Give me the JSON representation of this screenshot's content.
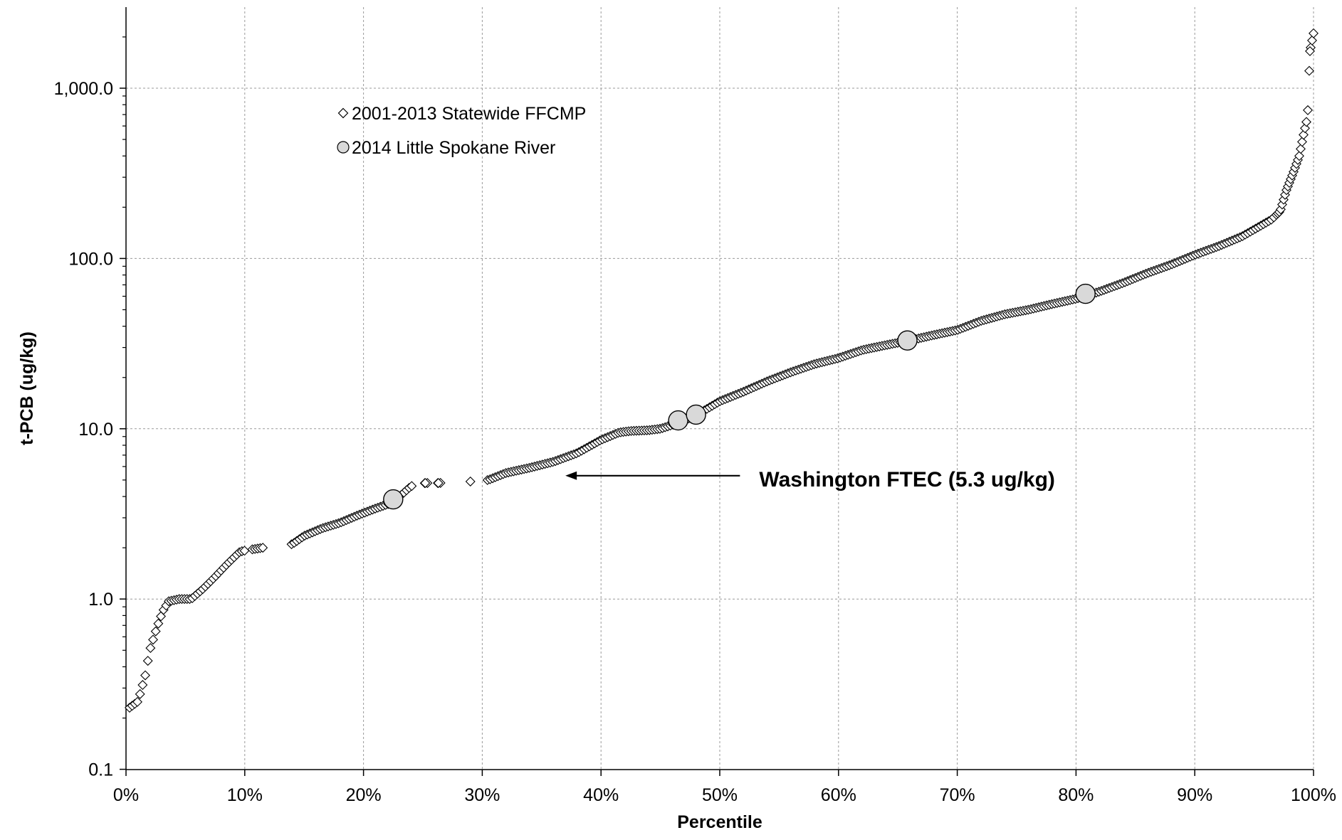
{
  "chart_data": {
    "type": "scatter",
    "title": "",
    "xlabel": "Percentile",
    "ylabel": "t-PCB (ug/kg)",
    "x_scale": "linear",
    "y_scale": "log",
    "xlim": [
      0,
      100
    ],
    "ylim": [
      0.1,
      3000
    ],
    "x_ticks": [
      0,
      10,
      20,
      30,
      40,
      50,
      60,
      70,
      80,
      90,
      100
    ],
    "x_tick_labels": [
      "0%",
      "10%",
      "20%",
      "30%",
      "40%",
      "50%",
      "60%",
      "70%",
      "80%",
      "90%",
      "100%"
    ],
    "y_ticks": [
      0.1,
      1,
      10,
      100,
      1000
    ],
    "y_tick_labels": [
      "0.1",
      "1.0",
      "10.0",
      "100.0",
      "1,000.0"
    ],
    "grid": true,
    "legend_position": "top-left",
    "series": [
      {
        "name": "2001-2013 Statewide FFCMP",
        "marker": "diamond",
        "color": "#000000",
        "fill": "#ffffff",
        "curve_points": [
          [
            0.3,
            0.23
          ],
          [
            1.0,
            0.25
          ],
          [
            1.6,
            0.35
          ],
          [
            2.0,
            0.5
          ],
          [
            2.6,
            0.68
          ],
          [
            3.1,
            0.85
          ],
          [
            3.6,
            0.97
          ],
          [
            4.5,
            1.0
          ],
          [
            5.5,
            1.0
          ],
          [
            6.5,
            1.15
          ],
          [
            7.5,
            1.35
          ],
          [
            8.5,
            1.6
          ],
          [
            9.6,
            1.9
          ],
          [
            10.5,
            1.95
          ],
          [
            11.5,
            2.0
          ],
          [
            14.0,
            2.1
          ],
          [
            15.0,
            2.35
          ],
          [
            16.5,
            2.6
          ],
          [
            18.0,
            2.8
          ],
          [
            19.5,
            3.1
          ],
          [
            21.0,
            3.4
          ],
          [
            22.5,
            3.7
          ],
          [
            24.0,
            4.6
          ],
          [
            25.2,
            4.8
          ],
          [
            26.3,
            4.8
          ],
          [
            29.0,
            4.9
          ],
          [
            30.5,
            5.0
          ],
          [
            32.0,
            5.5
          ],
          [
            34.0,
            5.9
          ],
          [
            36.0,
            6.4
          ],
          [
            38.0,
            7.2
          ],
          [
            40.0,
            8.6
          ],
          [
            41.5,
            9.5
          ],
          [
            42.5,
            9.7
          ],
          [
            44.0,
            9.8
          ],
          [
            45.0,
            10.0
          ],
          [
            46.5,
            10.8
          ],
          [
            48.0,
            12.0
          ],
          [
            50.0,
            14.5
          ],
          [
            52.0,
            16.5
          ],
          [
            54.0,
            19.0
          ],
          [
            56.0,
            21.5
          ],
          [
            58.0,
            24.0
          ],
          [
            60.0,
            26.0
          ],
          [
            62.0,
            29.0
          ],
          [
            64.0,
            31.0
          ],
          [
            66.0,
            33.0
          ],
          [
            68.0,
            35.5
          ],
          [
            70.0,
            38.0
          ],
          [
            72.0,
            43.0
          ],
          [
            74.0,
            47.0
          ],
          [
            76.0,
            50.0
          ],
          [
            78.0,
            54.0
          ],
          [
            80.0,
            58.0
          ],
          [
            82.0,
            64.0
          ],
          [
            84.0,
            72.0
          ],
          [
            86.0,
            82.0
          ],
          [
            88.0,
            92.0
          ],
          [
            90.0,
            105.0
          ],
          [
            92.0,
            118.0
          ],
          [
            94.0,
            135.0
          ],
          [
            95.5,
            155.0
          ],
          [
            96.5,
            170.0
          ],
          [
            97.2,
            190.0
          ],
          [
            97.7,
            250.0
          ],
          [
            98.3,
            320.0
          ],
          [
            98.8,
            400.0
          ],
          [
            99.2,
            550.0
          ],
          [
            99.5,
            680.0
          ],
          [
            99.7,
            1650.0
          ],
          [
            100.0,
            2100.0
          ]
        ],
        "missing_x_ranges": [
          [
            10.0,
            10.5
          ],
          [
            11.6,
            13.9
          ],
          [
            24.2,
            25.0
          ],
          [
            25.4,
            26.1
          ],
          [
            26.5,
            28.9
          ],
          [
            29.1,
            30.4
          ]
        ]
      },
      {
        "name": "2014 Little Spokane River",
        "marker": "circle",
        "color": "#000000",
        "fill": "#d9d9d9",
        "x": [
          22.5,
          46.5,
          48.0,
          65.8,
          80.8
        ],
        "y": [
          3.85,
          11.2,
          12.1,
          33.0,
          62.0
        ]
      }
    ],
    "annotations": [
      {
        "text": "Washington FTEC (5.3 ug/kg)",
        "arrow_to": [
          37.0,
          5.3
        ],
        "text_at": [
          53.5,
          5.3
        ]
      }
    ]
  }
}
